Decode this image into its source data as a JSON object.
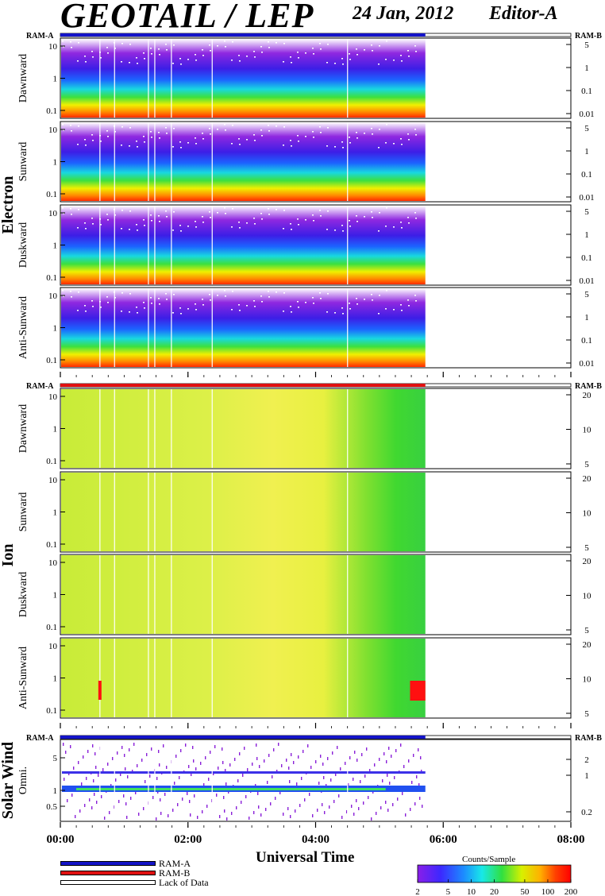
{
  "header": {
    "title": "GEOTAIL / LEP",
    "date": "24 Jan, 2012",
    "editor": "Editor-A"
  },
  "colors": {
    "ram_a": "#1414c8",
    "ram_b": "#e01010",
    "lack_of_data": "#ffffff"
  },
  "chart_data": {
    "type": "heatmap",
    "xlabel": "Universal Time",
    "x_ticks": [
      "00:00",
      "02:00",
      "04:00",
      "06:00",
      "08:00"
    ],
    "xlim_hours": [
      0,
      8
    ],
    "data_end_hour": 5.72,
    "data_gaps_hours": [
      0.62,
      0.85,
      1.38,
      1.48,
      1.74,
      2.38,
      4.5
    ],
    "colorbar": {
      "title": "Counts/Sample",
      "ticks": [
        "2",
        "5",
        "10",
        "20",
        "50",
        "100",
        "200"
      ],
      "scale": "log",
      "range": [
        2,
        200
      ]
    },
    "legend": [
      {
        "label": "RAM-A",
        "color": "#1414c8"
      },
      {
        "label": "RAM-B",
        "color": "#e01010"
      },
      {
        "label": "Lack of Data",
        "color": "#ffffff"
      }
    ],
    "groups": [
      {
        "name": "Electron",
        "ram_a_label": "RAM-A",
        "ram_b_label": "RAM-B",
        "ram_status": "RAM-A",
        "panels": [
          {
            "label": "Dawnward",
            "left_ticks": [
              "10",
              "1",
              "0.1"
            ],
            "right_ticks": [
              "5",
              "1",
              "0.1",
              "0.01"
            ]
          },
          {
            "label": "Sunward",
            "left_ticks": [
              "10",
              "1",
              "0.1"
            ],
            "right_ticks": [
              "5",
              "1",
              "0.1",
              "0.01"
            ]
          },
          {
            "label": "Duskward",
            "left_ticks": [
              "10",
              "1",
              "0.1"
            ],
            "right_ticks": [
              "5",
              "1",
              "0.1",
              "0.01"
            ]
          },
          {
            "label": "Anti-Sunward",
            "left_ticks": [
              "10",
              "1",
              "0.1"
            ],
            "right_ticks": [
              "5",
              "1",
              "0.1",
              "0.01"
            ]
          }
        ]
      },
      {
        "name": "Ion",
        "ram_a_label": "RAM-A",
        "ram_b_label": "RAM-B",
        "ram_status": "RAM-B",
        "panels": [
          {
            "label": "Dawnward",
            "left_ticks": [
              "10",
              "1",
              "0.1"
            ],
            "right_ticks": [
              "20",
              "10",
              "5"
            ]
          },
          {
            "label": "Sunward",
            "left_ticks": [
              "10",
              "1",
              "0.1"
            ],
            "right_ticks": [
              "20",
              "10",
              "5"
            ]
          },
          {
            "label": "Duskward",
            "left_ticks": [
              "10",
              "1",
              "0.1"
            ],
            "right_ticks": [
              "20",
              "10",
              "5"
            ]
          },
          {
            "label": "Anti-Sunward",
            "left_ticks": [
              "10",
              "1",
              "0.1"
            ],
            "right_ticks": [
              "20",
              "10",
              "5"
            ]
          }
        ]
      },
      {
        "name": "Solar Wind",
        "ram_a_label": "RAM-A",
        "ram_b_label": "RAM-B",
        "ram_status": "RAM-A",
        "panels": [
          {
            "label": "Omni.",
            "left_ticks": [
              "5",
              "1",
              "0.5"
            ],
            "right_ticks": [
              "2",
              "1",
              "0.2"
            ]
          }
        ]
      }
    ]
  }
}
